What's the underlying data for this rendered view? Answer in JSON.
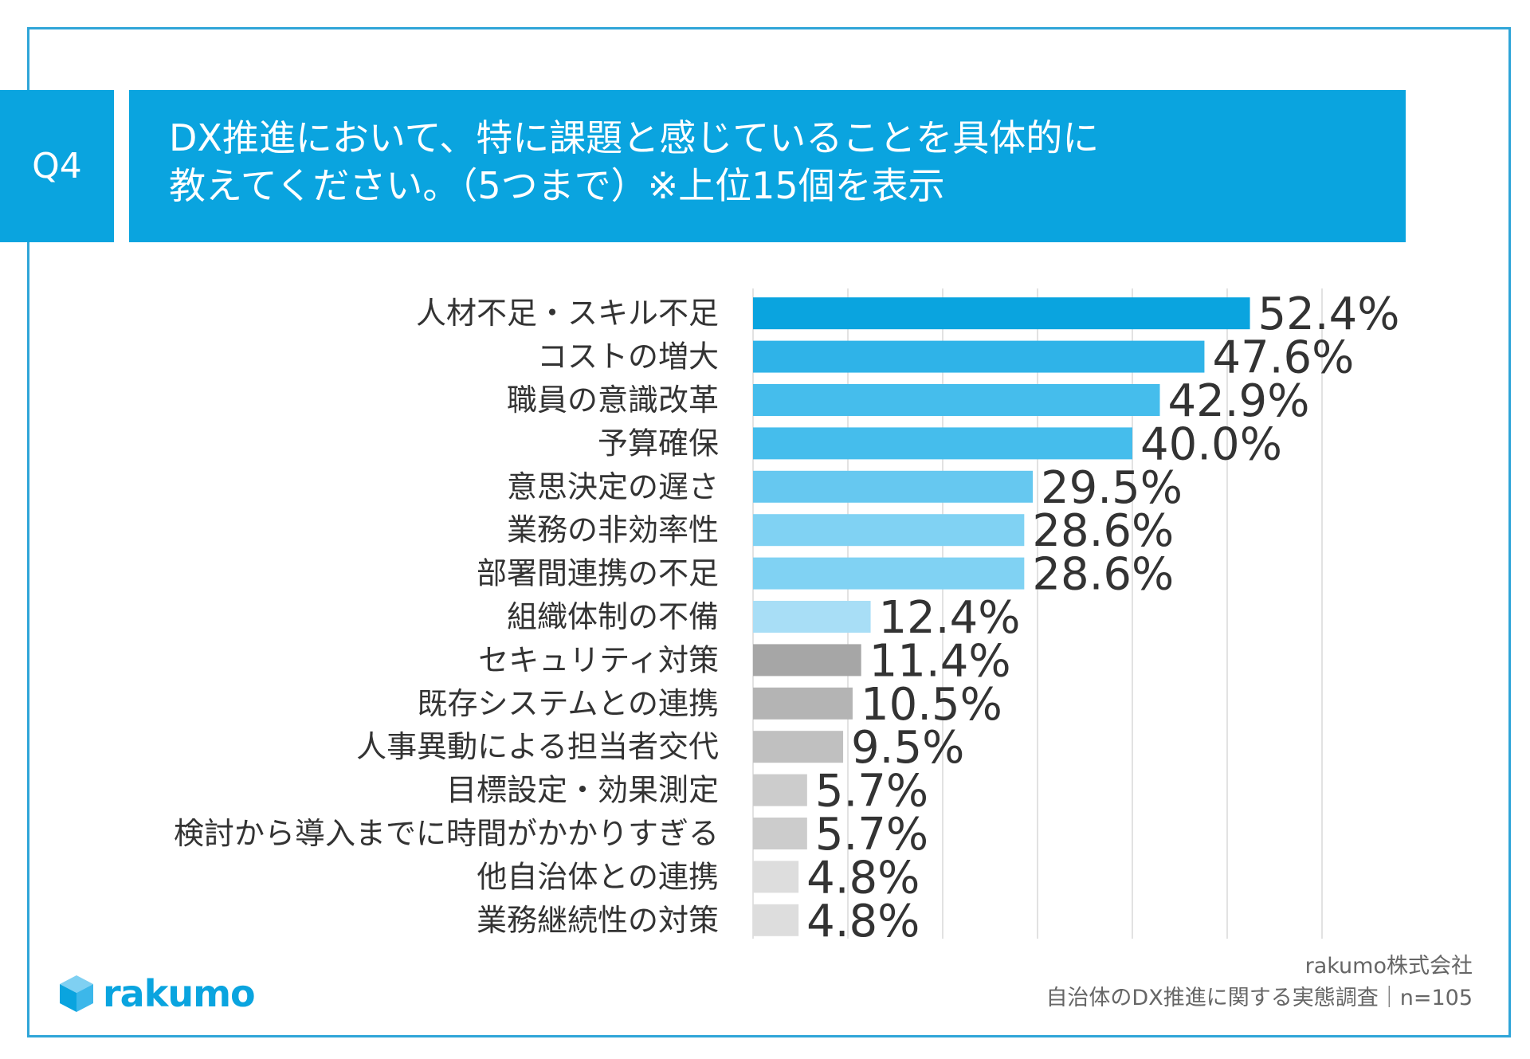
{
  "header": {
    "question_no": "Q4",
    "title_line1": "DX推進において、特に課題と感じていることを具体的に",
    "title_line2": "教えてください。（5つまで）※上位15個を表示"
  },
  "footer": {
    "company": "rakumo株式会社",
    "survey": "自治体のDX推進に関する実態調査｜n=105"
  },
  "logo": {
    "text": "rakumo",
    "icon": "cube-logo-icon"
  },
  "colors": {
    "accent": "#0aa4df",
    "bars": [
      "#0aa4df",
      "#2fb3e8",
      "#45bdec",
      "#45bdec",
      "#66c8f0",
      "#80d2f3",
      "#80d2f3",
      "#a8def6",
      "#a6a6a6",
      "#b4b4b4",
      "#c0c0c0",
      "#cccccc",
      "#cccccc",
      "#dddddd",
      "#dddddd"
    ]
  },
  "chart_data": {
    "type": "bar",
    "orientation": "horizontal",
    "title": "DX推進において、特に課題と感じていることを具体的に教えてください。（5つまで）※上位15個を表示",
    "categories": [
      "人材不足・スキル不足",
      "コストの増大",
      "職員の意識改革",
      "予算確保",
      "意思決定の遅さ",
      "業務の非効率性",
      "部署間連携の不足",
      "組織体制の不備",
      "セキュリティ対策",
      "既存システムとの連携",
      "人事異動による担当者交代",
      "目標設定・効果測定",
      "検討から導入までに時間がかかりすぎる",
      "他自治体との連携",
      "業務継続性の対策"
    ],
    "values": [
      52.4,
      47.6,
      42.9,
      40.0,
      29.5,
      28.6,
      28.6,
      12.4,
      11.4,
      10.5,
      9.5,
      5.7,
      5.7,
      4.8,
      4.8
    ],
    "value_labels": [
      "52.4%",
      "47.6%",
      "42.9%",
      "40.0%",
      "29.5%",
      "28.6%",
      "28.6%",
      "12.4%",
      "11.4%",
      "10.5%",
      "9.5%",
      "5.7%",
      "5.7%",
      "4.8%",
      "4.8%"
    ],
    "xlim": [
      0,
      60
    ],
    "grid": true,
    "gridlines": [
      0,
      10,
      20,
      30,
      40,
      50,
      60
    ],
    "n": 105
  }
}
